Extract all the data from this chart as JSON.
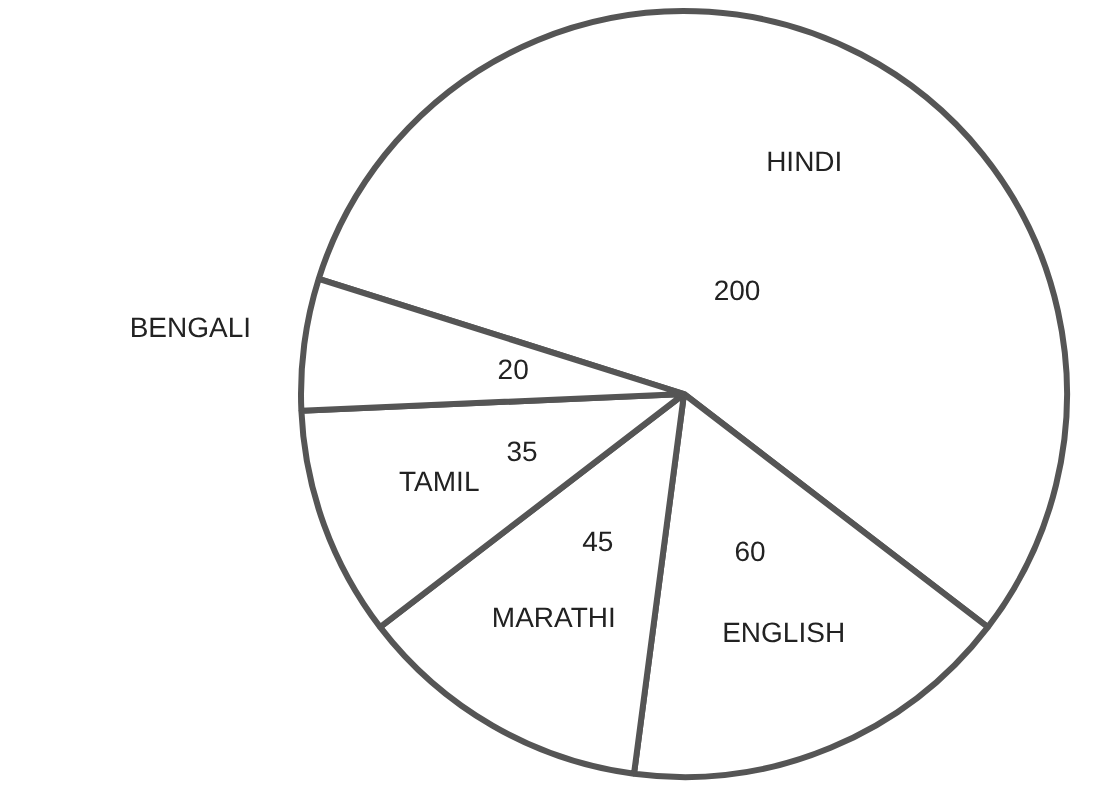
{
  "chart_data": {
    "type": "pie",
    "categories": [
      "HINDI",
      "ENGLISH",
      "MARATHI",
      "TAMIL",
      "BENGALI"
    ],
    "values": [
      200,
      60,
      45,
      35,
      20
    ],
    "colors": [
      "#ffffff",
      "#ffffff",
      "#ffffff",
      "#ffffff",
      "#ffffff"
    ],
    "data_labels": true,
    "legend": false
  }
}
